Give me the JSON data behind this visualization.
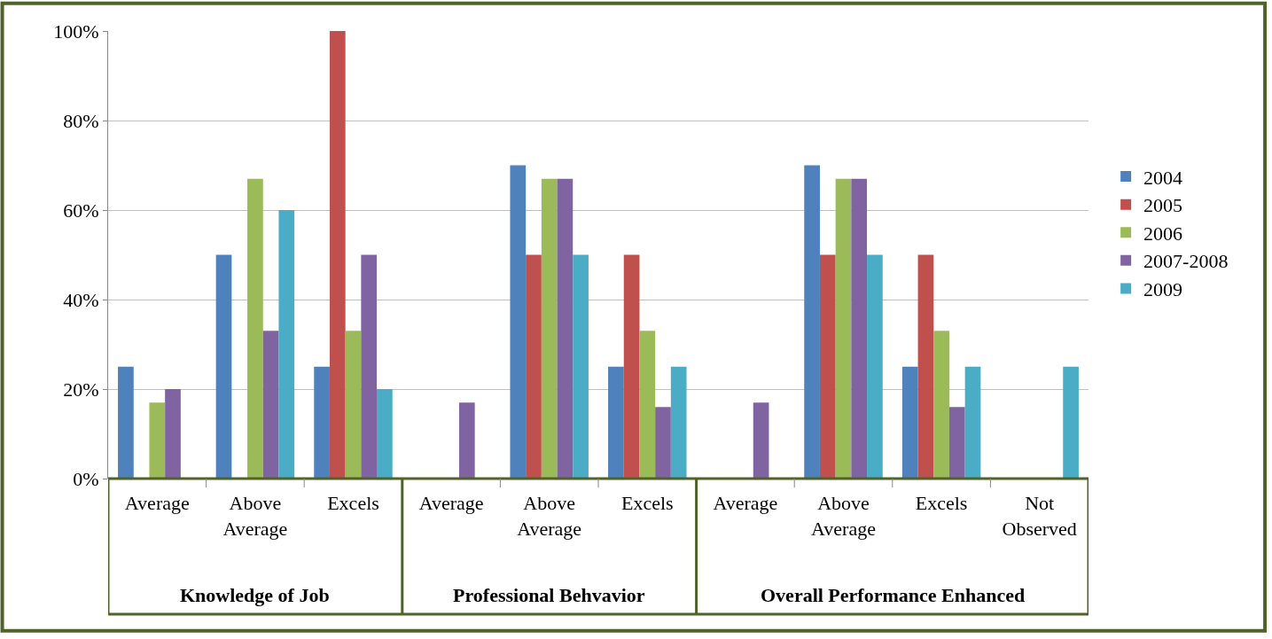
{
  "chart_data": {
    "type": "bar",
    "categories": [
      "Average",
      "Above Average",
      "Excels",
      "Average",
      "Above Average",
      "Excels",
      "Average",
      "Above Average",
      "Excels",
      "Not Observed"
    ],
    "series": [
      {
        "name": "2004",
        "color": "#4f81bd",
        "values": [
          25,
          50,
          25,
          null,
          70,
          25,
          null,
          70,
          25,
          null
        ]
      },
      {
        "name": "2005",
        "color": "#c0504d",
        "values": [
          null,
          null,
          100,
          null,
          50,
          50,
          null,
          50,
          50,
          null
        ]
      },
      {
        "name": "2006",
        "color": "#9bbb59",
        "values": [
          17,
          67,
          33,
          null,
          67,
          33,
          null,
          67,
          33,
          null
        ]
      },
      {
        "name": "2007-2008",
        "color": "#8064a2",
        "values": [
          20,
          33,
          50,
          17,
          67,
          16,
          17,
          67,
          16,
          null
        ]
      },
      {
        "name": "2009",
        "color": "#4bacc6",
        "values": [
          null,
          60,
          20,
          null,
          50,
          25,
          null,
          50,
          25,
          25
        ]
      }
    ],
    "annotations": [
      "Knowledge of Job",
      "Professional Behvavior",
      "Overall Performance Enhanced"
    ],
    "ylim": [
      0,
      100
    ],
    "yticks": [
      {
        "value": 0,
        "label": "0%"
      },
      {
        "value": 20,
        "label": "20%"
      },
      {
        "value": 40,
        "label": "40%"
      },
      {
        "value": 60,
        "label": "60%"
      },
      {
        "value": 80,
        "label": "80%"
      },
      {
        "value": 100,
        "label": "100%"
      }
    ],
    "grid": "y",
    "legend": "right"
  }
}
